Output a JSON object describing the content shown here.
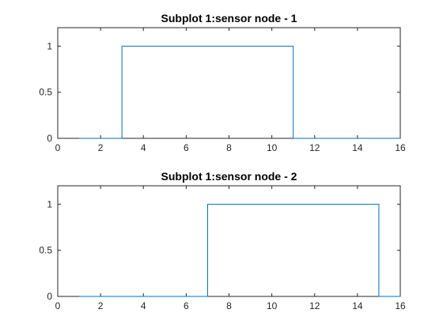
{
  "chart_data": [
    {
      "type": "line",
      "title": "Subplot 1:sensor node - 1",
      "xlabel": "",
      "ylabel": "",
      "xlim": [
        0,
        16
      ],
      "ylim": [
        0,
        1.2
      ],
      "x_ticks": [
        0,
        2,
        4,
        6,
        8,
        10,
        12,
        14,
        16
      ],
      "x_tick_labels": [
        "0",
        "2",
        "4",
        "6",
        "8",
        "10",
        "12",
        "14",
        "16"
      ],
      "y_ticks": [
        0,
        0.5,
        1
      ],
      "y_tick_labels": [
        "0",
        "0.5",
        "1"
      ],
      "grid": false,
      "series": [
        {
          "color": "#0072BD",
          "step": "post",
          "x": [
            1,
            3,
            11,
            16
          ],
          "y": [
            0,
            1,
            0,
            0
          ]
        }
      ]
    },
    {
      "type": "line",
      "title": "Subplot 1:sensor node - 2",
      "xlabel": "",
      "ylabel": "",
      "xlim": [
        0,
        16
      ],
      "ylim": [
        0,
        1.2
      ],
      "x_ticks": [
        0,
        2,
        4,
        6,
        8,
        10,
        12,
        14,
        16
      ],
      "x_tick_labels": [
        "0",
        "2",
        "4",
        "6",
        "8",
        "10",
        "12",
        "14",
        "16"
      ],
      "y_ticks": [
        0,
        0.5,
        1
      ],
      "y_tick_labels": [
        "0",
        "0.5",
        "1"
      ],
      "grid": false,
      "series": [
        {
          "color": "#0072BD",
          "step": "post",
          "x": [
            1,
            7,
            15,
            16
          ],
          "y": [
            0,
            1,
            0,
            0
          ]
        }
      ]
    }
  ]
}
